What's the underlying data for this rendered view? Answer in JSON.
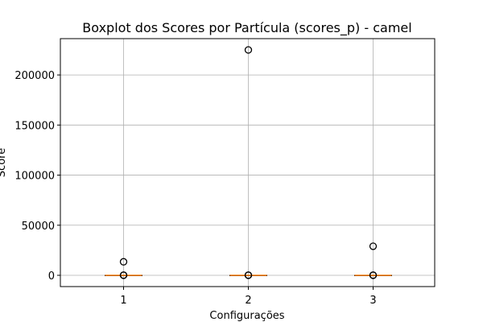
{
  "chart_data": {
    "type": "boxplot",
    "title": "Boxplot dos Scores por Partícula (scores_p) - camel",
    "xlabel": "Configurações",
    "ylabel": "Score",
    "categories": [
      "1",
      "2",
      "3"
    ],
    "ylim": [
      -11250,
      236250
    ],
    "yticks": [
      0,
      50000,
      100000,
      150000,
      200000
    ],
    "grid": true,
    "boxes": [
      {
        "category": "1",
        "median": 0,
        "q1": 0,
        "q3": 0,
        "whisker_low": 0,
        "whisker_high": 0,
        "outliers": [
          13500,
          200,
          0
        ]
      },
      {
        "category": "2",
        "median": 0,
        "q1": 0,
        "q3": 0,
        "whisker_low": 0,
        "whisker_high": 0,
        "outliers": [
          225000,
          200,
          0
        ]
      },
      {
        "category": "3",
        "median": 0,
        "q1": 0,
        "q3": 0,
        "whisker_low": 0,
        "whisker_high": 0,
        "outliers": [
          29000,
          200,
          0
        ]
      }
    ],
    "colors": {
      "median": "#ff7f0e",
      "box": "#000000",
      "grid": "#b0b0b0"
    }
  }
}
